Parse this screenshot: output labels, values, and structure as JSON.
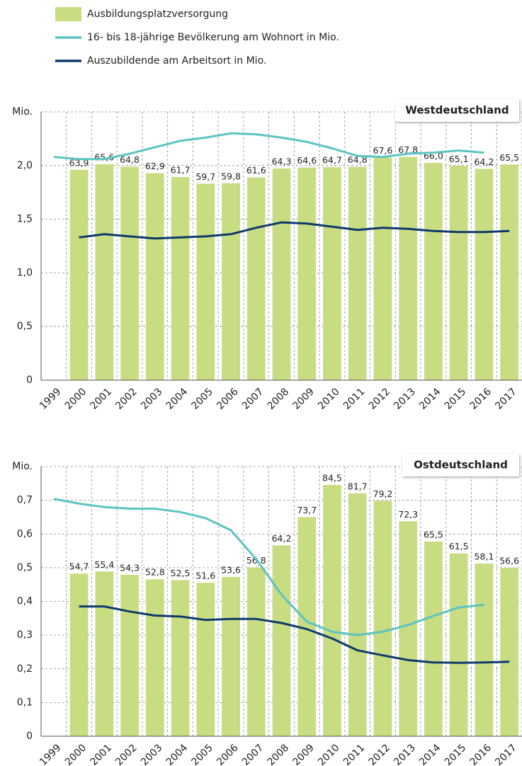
{
  "chart_data": [
    {
      "type": "bar",
      "title": "Westdeutschland",
      "categories": [
        "1999",
        "2000",
        "2001",
        "2002",
        "2003",
        "2004",
        "2005",
        "2006",
        "2007",
        "2008",
        "2009",
        "2010",
        "2011",
        "2012",
        "2013",
        "2014",
        "2015",
        "2016",
        "2017"
      ],
      "ylim": [
        0,
        2.5
      ],
      "yticks": [
        0,
        {
          "value": 0.5,
          "label": "0,5"
        },
        {
          "value": 1,
          "label": "1,0"
        },
        {
          "value": 1.5,
          "label": "1,5"
        },
        {
          "value": 2,
          "label": "2,0"
        },
        {
          "value": 2.5,
          "label": "Mio."
        }
      ],
      "y2lim": [
        0,
        81.5
      ],
      "grid": true,
      "series": [
        {
          "name": "Ausbildungsplatzversorgung",
          "type": "bar",
          "axis": "y2",
          "color": "#c8dc82",
          "values": [
            null,
            63.9,
            65.6,
            64.8,
            62.9,
            61.7,
            59.7,
            59.8,
            61.6,
            64.3,
            64.6,
            64.7,
            64.8,
            67.6,
            67.8,
            66.0,
            65.1,
            64.2,
            65.5
          ],
          "value_labels": [
            null,
            "63,9",
            "65,6",
            "64,8",
            "62,9",
            "61,7",
            "59,7",
            "59,8",
            "61,6",
            "64,3",
            "64,6",
            "64,7",
            "64,8",
            "67,6",
            "67,8",
            "66,0",
            "65,1",
            "64,2",
            "65,5"
          ]
        },
        {
          "name": "16- bis 18-jährige Bevölkerung am Wohnort in Mio.",
          "type": "line",
          "color": "#5cc3c3",
          "values": [
            2.08,
            2.06,
            2.06,
            2.11,
            2.17,
            2.23,
            2.26,
            2.3,
            2.29,
            2.26,
            2.22,
            2.16,
            2.09,
            2.08,
            2.11,
            2.12,
            2.14,
            2.12,
            null
          ]
        },
        {
          "name": "Auszubildende am Arbeitsort in Mio.",
          "type": "line",
          "color": "#0e3a6c",
          "values": [
            null,
            1.33,
            1.36,
            1.34,
            1.32,
            1.33,
            1.34,
            1.36,
            1.42,
            1.47,
            1.46,
            1.43,
            1.4,
            1.42,
            1.41,
            1.39,
            1.38,
            1.38,
            1.39
          ]
        }
      ]
    },
    {
      "type": "bar",
      "title": "Ostdeutschland",
      "categories": [
        "1999",
        "2000",
        "2001",
        "2002",
        "2003",
        "2004",
        "2005",
        "2006",
        "2007",
        "2008",
        "2009",
        "2010",
        "2011",
        "2012",
        "2013",
        "2014",
        "2015",
        "2016",
        "2017"
      ],
      "ylim": [
        0,
        0.8
      ],
      "yticks": [
        0,
        {
          "value": 0.1,
          "label": "0,1"
        },
        {
          "value": 0.2,
          "label": "0,2"
        },
        {
          "value": 0.3,
          "label": "0,3"
        },
        {
          "value": 0.4,
          "label": "0,4"
        },
        {
          "value": 0.5,
          "label": "0,5"
        },
        {
          "value": 0.6,
          "label": "0,6"
        },
        {
          "value": 0.7,
          "label": "0,7"
        },
        {
          "value": 0.8,
          "label": "Mio."
        }
      ],
      "y2lim": [
        0,
        90.7
      ],
      "grid": true,
      "series": [
        {
          "type": "bar",
          "axis": "y2",
          "color": "#c8dc82",
          "values": [
            null,
            54.7,
            55.4,
            54.3,
            52.8,
            52.5,
            51.6,
            53.6,
            56.8,
            64.2,
            73.7,
            84.5,
            81.7,
            79.2,
            72.3,
            65.5,
            61.5,
            58.1,
            56.6
          ],
          "value_labels": [
            null,
            "54,7",
            "55,4",
            "54,3",
            "52,8",
            "52,5",
            "51,6",
            "53,6",
            "56,8",
            "64,2",
            "73,7",
            "84,5",
            "81,7",
            "79,2",
            "72,3",
            "65,5",
            "61,5",
            "58,1",
            "56,6"
          ]
        },
        {
          "type": "line",
          "color": "#5cc3c3",
          "values": [
            0.704,
            0.69,
            0.68,
            0.675,
            0.675,
            0.665,
            0.647,
            0.611,
            0.525,
            0.42,
            0.34,
            0.31,
            0.3,
            0.31,
            0.33,
            0.357,
            0.382,
            0.39,
            null
          ]
        },
        {
          "type": "line",
          "color": "#0e3a6c",
          "values": [
            null,
            0.385,
            0.385,
            0.37,
            0.358,
            0.355,
            0.345,
            0.348,
            0.348,
            0.336,
            0.318,
            0.29,
            0.255,
            0.24,
            0.226,
            0.219,
            0.218,
            0.219,
            0.221
          ]
        }
      ]
    }
  ]
}
